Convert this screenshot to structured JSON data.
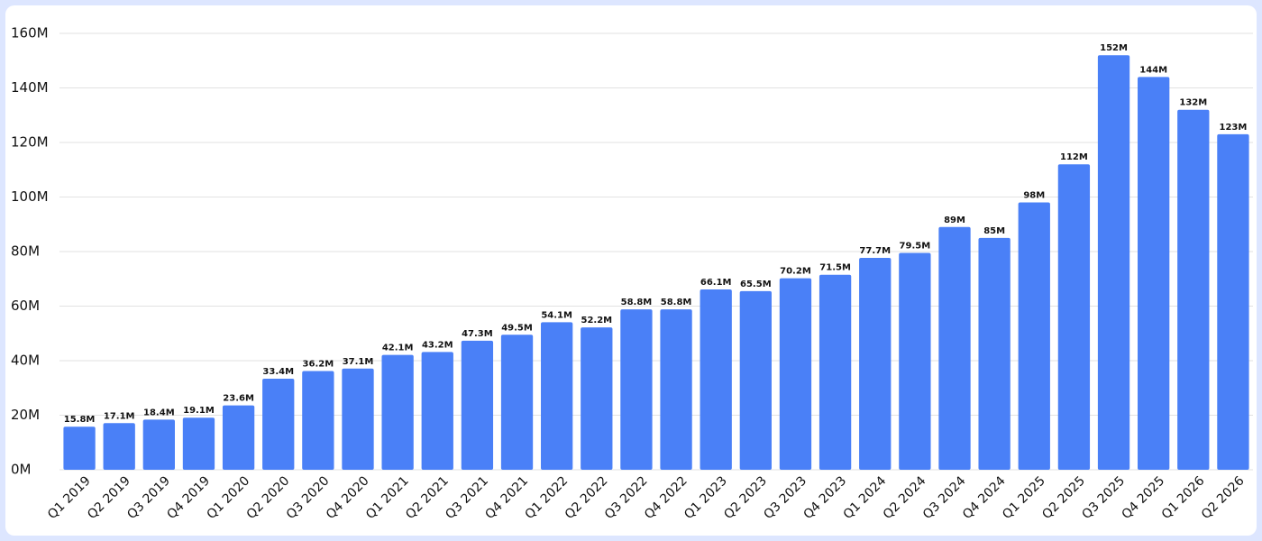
{
  "chart_data": {
    "type": "bar",
    "categories": [
      "Q1 2019",
      "Q2 2019",
      "Q3 2019",
      "Q4 2019",
      "Q1 2020",
      "Q2 2020",
      "Q3 2020",
      "Q4 2020",
      "Q1 2021",
      "Q2 2021",
      "Q3 2021",
      "Q4 2021",
      "Q1 2022",
      "Q2 2022",
      "Q3 2022",
      "Q4 2022",
      "Q1 2023",
      "Q2 2023",
      "Q3 2023",
      "Q4 2023",
      "Q1 2024",
      "Q2 2024",
      "Q3 2024",
      "Q4 2024",
      "Q1 2025",
      "Q2 2025",
      "Q3 2025",
      "Q4 2025",
      "Q1 2026",
      "Q2 2026"
    ],
    "values": [
      15.8,
      17.1,
      18.4,
      19.1,
      23.6,
      33.4,
      36.2,
      37.1,
      42.1,
      43.2,
      47.3,
      49.5,
      54.1,
      52.2,
      58.8,
      58.8,
      66.1,
      65.5,
      70.2,
      71.5,
      77.7,
      79.5,
      89,
      85,
      98,
      112,
      152,
      144,
      132,
      123
    ],
    "value_labels": [
      "15.8M",
      "17.1M",
      "18.4M",
      "19.1M",
      "23.6M",
      "33.4M",
      "36.2M",
      "37.1M",
      "42.1M",
      "43.2M",
      "47.3M",
      "49.5M",
      "54.1M",
      "52.2M",
      "58.8M",
      "58.8M",
      "66.1M",
      "65.5M",
      "70.2M",
      "71.5M",
      "77.7M",
      "79.5M",
      "89M",
      "85M",
      "98M",
      "112M",
      "152M",
      "144M",
      "132M",
      "123M"
    ],
    "color": "#4a80f7",
    "ylim": [
      0,
      160
    ],
    "yticks": [
      {
        "value": 0,
        "label": "0M"
      },
      {
        "value": 20,
        "label": "20M"
      },
      {
        "value": 40,
        "label": "40M"
      },
      {
        "value": 60,
        "label": "60M"
      },
      {
        "value": 80,
        "label": "80M"
      },
      {
        "value": 100,
        "label": "100M"
      },
      {
        "value": 120,
        "label": "120M"
      },
      {
        "value": 140,
        "label": "140M"
      },
      {
        "value": 160,
        "label": "160M"
      }
    ],
    "grid": true
  }
}
